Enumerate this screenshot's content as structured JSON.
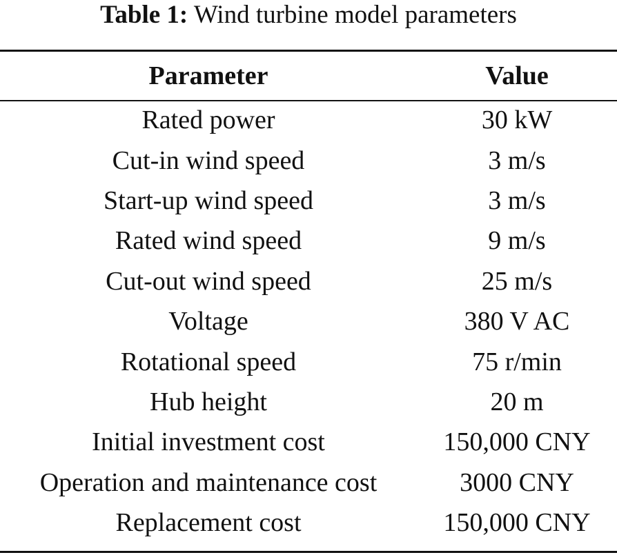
{
  "caption": {
    "label": "Table 1:",
    "text": "Wind turbine model parameters"
  },
  "table": {
    "headers": [
      "Parameter",
      "Value"
    ],
    "rows": [
      [
        "Rated power",
        "30 kW"
      ],
      [
        "Cut-in wind speed",
        "3 m/s"
      ],
      [
        "Start-up wind speed",
        "3 m/s"
      ],
      [
        "Rated wind speed",
        "9 m/s"
      ],
      [
        "Cut-out wind speed",
        "25 m/s"
      ],
      [
        "Voltage",
        "380 V AC"
      ],
      [
        "Rotational speed",
        "75 r/min"
      ],
      [
        "Hub height",
        "20 m"
      ],
      [
        "Initial investment cost",
        "150,000 CNY"
      ],
      [
        "Operation and maintenance cost",
        "3000 CNY"
      ],
      [
        "Replacement cost",
        "150,000 CNY"
      ]
    ]
  }
}
